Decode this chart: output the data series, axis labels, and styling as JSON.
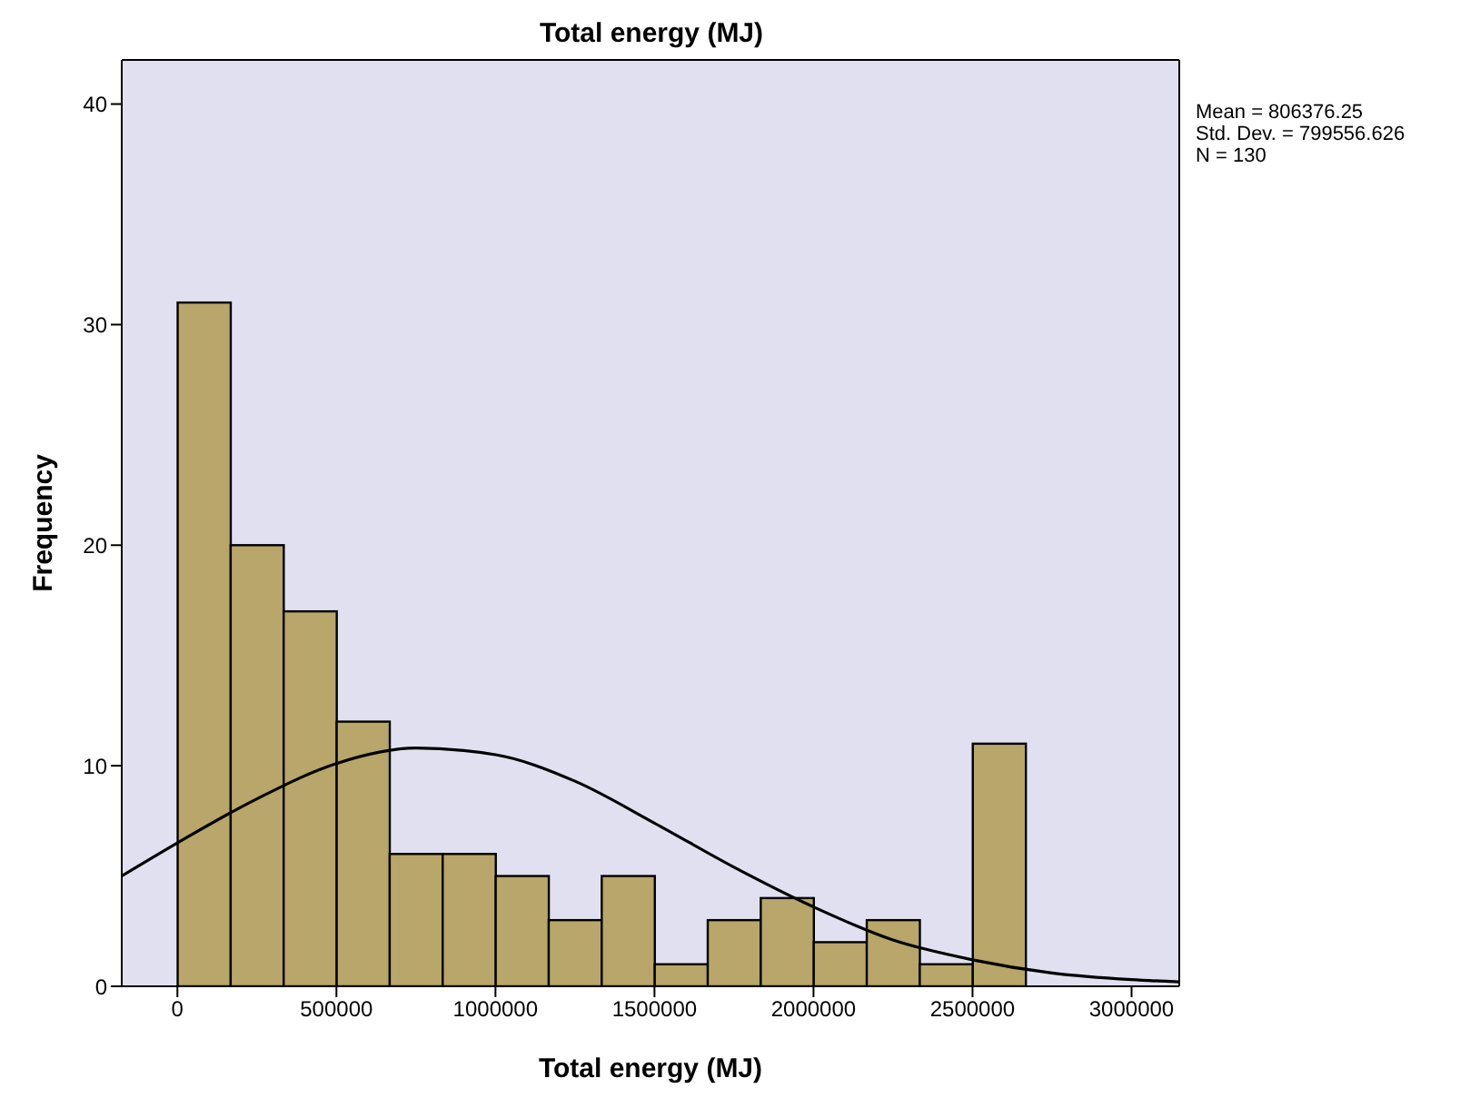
{
  "chart_data": {
    "type": "histogram",
    "title": "Total energy (MJ)",
    "xlabel": "Total energy (MJ)",
    "ylabel": "Frequency",
    "bins": [
      0,
      166667,
      333333,
      500000,
      666667,
      833333,
      1000000,
      1166667,
      1333333,
      1500000,
      1666667,
      1833333,
      2000000,
      2166667,
      2333333,
      2500000,
      2666667
    ],
    "values": [
      31,
      20,
      17,
      12,
      6,
      6,
      5,
      3,
      5,
      1,
      3,
      4,
      2,
      3,
      1,
      11
    ],
    "color": "#b8a66a",
    "series": [
      {
        "type": "line",
        "color": "#000000",
        "x": [
          -175000,
          0,
          250000,
          500000,
          750000,
          1000000,
          1250000,
          1500000,
          1750000,
          2000000,
          2250000,
          2500000,
          2750000,
          3000000,
          3150000
        ],
        "values": [
          5.0,
          6.5,
          8.5,
          10.1,
          10.8,
          10.5,
          9.3,
          7.4,
          5.4,
          3.6,
          2.1,
          1.2,
          0.6,
          0.3,
          0.2
        ]
      }
    ],
    "xlim": [
      -175000,
      3150000
    ],
    "xticks": [
      0,
      500000,
      1000000,
      1500000,
      2000000,
      2500000,
      3000000
    ],
    "ylim": [
      0,
      42
    ],
    "yticks": [
      0,
      10,
      20,
      30,
      40
    ],
    "marker": "none",
    "annotations": [
      "Mean = 806376.25",
      "Std. Dev. = 799556.626",
      "N = 130"
    ]
  }
}
